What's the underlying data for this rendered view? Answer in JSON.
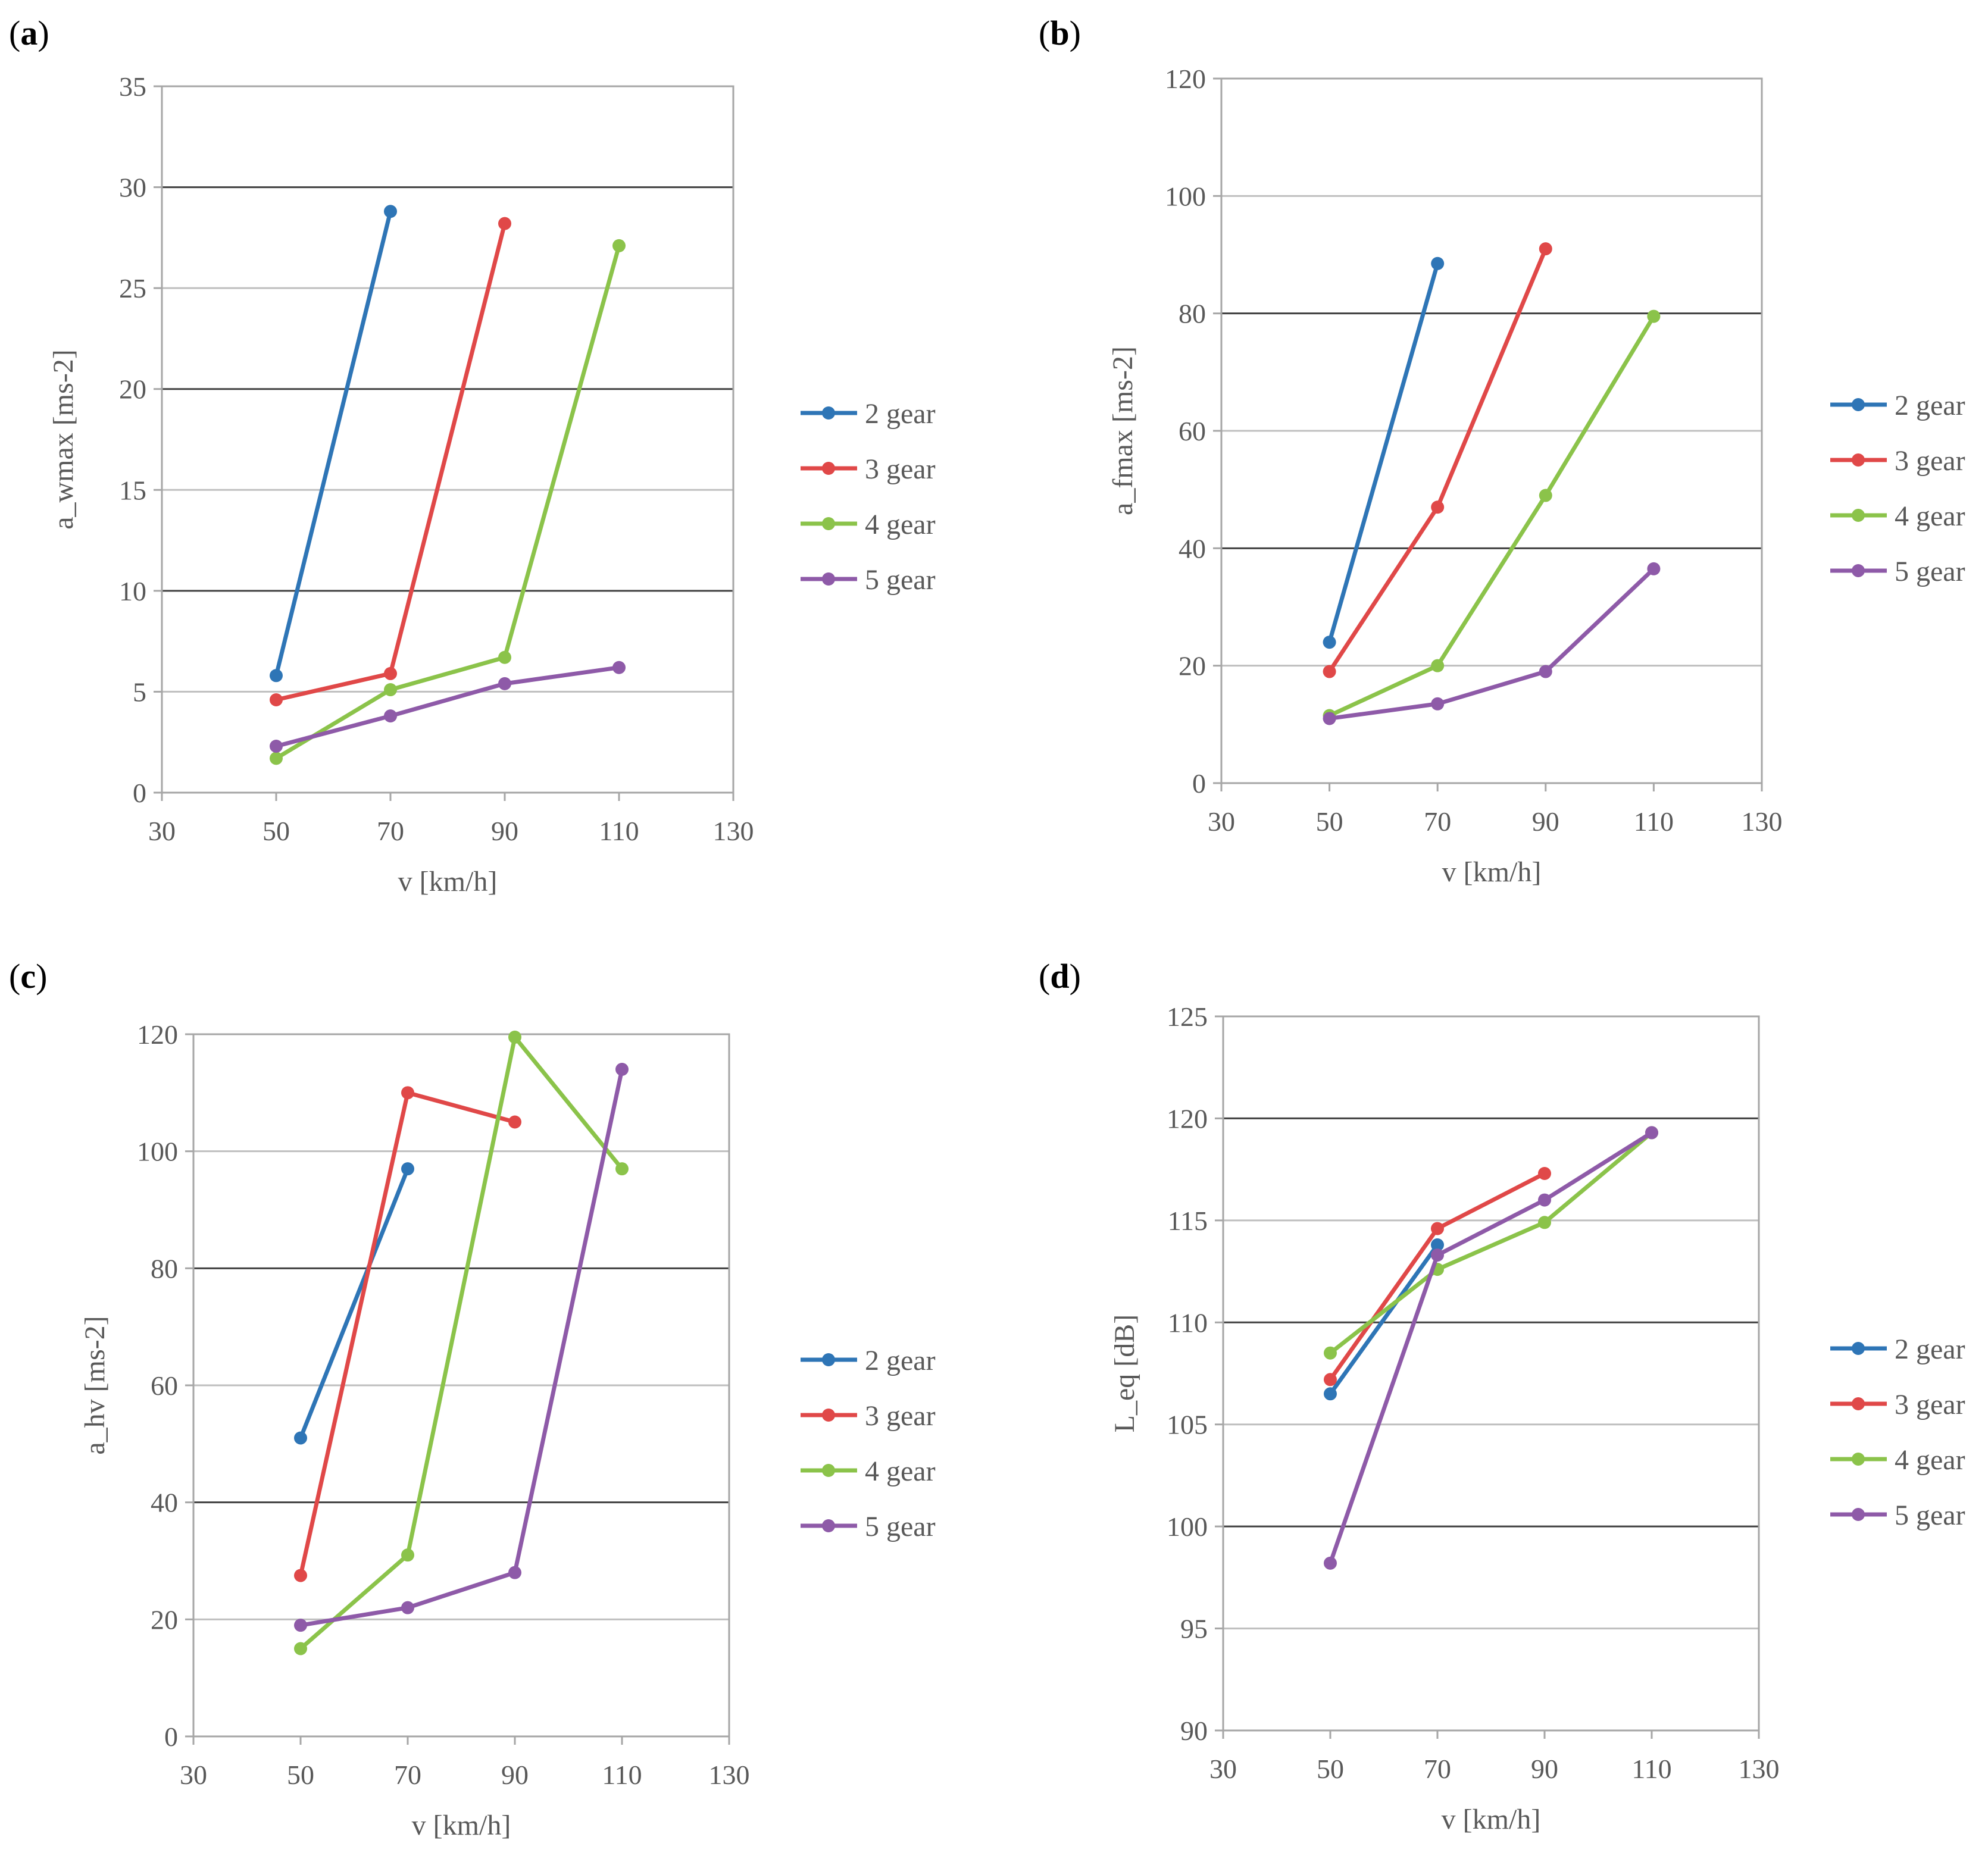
{
  "colors": {
    "series": [
      "#2E75B6",
      "#E04848",
      "#8BC34A",
      "#8E5AA8"
    ],
    "grid": "#bfbfbf",
    "gridMajor": "#404040",
    "frame": "#a6a6a6"
  },
  "chart_data": [
    {
      "type": "line",
      "panel": "a",
      "panel_label": "a",
      "xlabel": "v [km/h]",
      "ylabel": "a_wmax [ms-2]",
      "xlim": [
        30,
        130
      ],
      "ylim": [
        0,
        35
      ],
      "xticks": [
        30,
        50,
        70,
        90,
        110,
        130
      ],
      "yticks": [
        0,
        5,
        10,
        15,
        20,
        25,
        30,
        35
      ],
      "series": [
        {
          "name": "2 gear",
          "x": [
            50,
            70
          ],
          "values": [
            5.8,
            28.8
          ]
        },
        {
          "name": "3 gear",
          "x": [
            50,
            70,
            90
          ],
          "values": [
            4.6,
            5.9,
            28.2
          ]
        },
        {
          "name": "4 gear",
          "x": [
            50,
            70,
            90,
            110
          ],
          "values": [
            1.7,
            5.1,
            6.7,
            27.1
          ]
        },
        {
          "name": "5 gear",
          "x": [
            50,
            70,
            90,
            110
          ],
          "values": [
            2.3,
            3.8,
            5.4,
            6.2
          ]
        }
      ]
    },
    {
      "type": "line",
      "panel": "b",
      "panel_label": "b",
      "xlabel": "v [km/h]",
      "ylabel": "a_fmax [ms-2]",
      "xlim": [
        30,
        130
      ],
      "ylim": [
        0,
        120
      ],
      "xticks": [
        30,
        50,
        70,
        90,
        110,
        130
      ],
      "yticks": [
        0,
        20,
        40,
        60,
        80,
        100,
        120
      ],
      "series": [
        {
          "name": "2 gear",
          "x": [
            50,
            70
          ],
          "values": [
            24,
            88.5
          ]
        },
        {
          "name": "3 gear",
          "x": [
            50,
            70,
            90
          ],
          "values": [
            19,
            47,
            91
          ]
        },
        {
          "name": "4 gear",
          "x": [
            50,
            70,
            90,
            110
          ],
          "values": [
            11.5,
            20,
            49,
            79.5
          ]
        },
        {
          "name": "5 gear",
          "x": [
            50,
            70,
            90,
            110
          ],
          "values": [
            11,
            13.5,
            19,
            36.5
          ]
        }
      ]
    },
    {
      "type": "line",
      "panel": "c",
      "panel_label": "c",
      "xlabel": "v [km/h]",
      "ylabel": "a_hv [ms-2]",
      "xlim": [
        30,
        130
      ],
      "ylim": [
        0,
        120
      ],
      "xticks": [
        30,
        50,
        70,
        90,
        110,
        130
      ],
      "yticks": [
        0,
        20,
        40,
        60,
        80,
        100,
        120
      ],
      "series": [
        {
          "name": "2 gear",
          "x": [
            50,
            70
          ],
          "values": [
            51,
            97
          ]
        },
        {
          "name": "3 gear",
          "x": [
            50,
            70,
            90
          ],
          "values": [
            27.5,
            110,
            105
          ]
        },
        {
          "name": "4 gear",
          "x": [
            50,
            70,
            90,
            110
          ],
          "values": [
            15,
            31,
            119.5,
            97
          ]
        },
        {
          "name": "5 gear",
          "x": [
            50,
            70,
            90,
            110
          ],
          "values": [
            19,
            22,
            28,
            114
          ]
        }
      ]
    },
    {
      "type": "line",
      "panel": "d",
      "panel_label": "d",
      "xlabel": "v [km/h]",
      "ylabel": "L_eq [dB]",
      "xlim": [
        30,
        130
      ],
      "ylim": [
        90,
        125
      ],
      "xticks": [
        30,
        50,
        70,
        90,
        110,
        130
      ],
      "yticks": [
        90,
        95,
        100,
        105,
        110,
        115,
        120,
        125
      ],
      "series": [
        {
          "name": "2 gear",
          "x": [
            50,
            70
          ],
          "values": [
            106.5,
            113.8
          ]
        },
        {
          "name": "3 gear",
          "x": [
            50,
            70,
            90
          ],
          "values": [
            107.2,
            114.6,
            117.3
          ]
        },
        {
          "name": "4 gear",
          "x": [
            50,
            70,
            90,
            110
          ],
          "values": [
            108.5,
            112.6,
            114.9,
            119.3
          ]
        },
        {
          "name": "5 gear",
          "x": [
            50,
            70,
            90,
            110
          ],
          "values": [
            98.2,
            113.3,
            116,
            119.3
          ]
        }
      ]
    }
  ]
}
